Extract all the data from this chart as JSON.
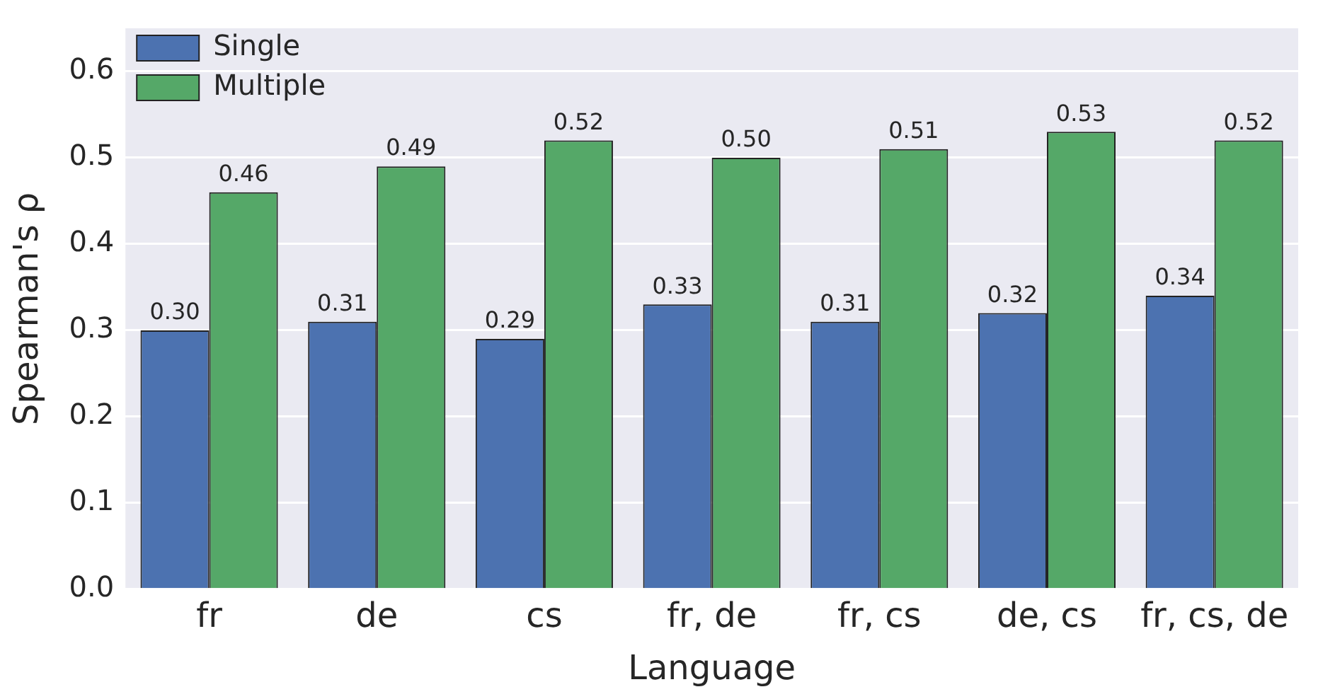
{
  "chart_data": {
    "type": "bar",
    "xlabel": "Language",
    "ylabel": "Spearman's ρ",
    "categories": [
      "fr",
      "de",
      "cs",
      "fr, de",
      "fr, cs",
      "de, cs",
      "fr, cs, de"
    ],
    "series": [
      {
        "name": "Single",
        "color": "#4c72b0",
        "values": [
          0.3,
          0.31,
          0.29,
          0.33,
          0.31,
          0.32,
          0.34
        ],
        "value_labels": [
          "0.30",
          "0.31",
          "0.29",
          "0.33",
          "0.31",
          "0.32",
          "0.34"
        ]
      },
      {
        "name": "Multiple",
        "color": "#55a868",
        "values": [
          0.46,
          0.49,
          0.52,
          0.5,
          0.51,
          0.53,
          0.52
        ],
        "value_labels": [
          "0.46",
          "0.49",
          "0.52",
          "0.50",
          "0.51",
          "0.53",
          "0.52"
        ]
      }
    ],
    "ylim": [
      0,
      0.65
    ],
    "yticks": [
      {
        "value": 0,
        "label": "0.0"
      },
      {
        "value": 0.1,
        "label": "0.1"
      },
      {
        "value": 0.2,
        "label": "0.2"
      },
      {
        "value": 0.3,
        "label": "0.3"
      },
      {
        "value": 0.4,
        "label": "0.4"
      },
      {
        "value": 0.5,
        "label": "0.5"
      },
      {
        "value": 0.6,
        "label": "0.6"
      }
    ],
    "grid": "y",
    "legend": "top left"
  }
}
